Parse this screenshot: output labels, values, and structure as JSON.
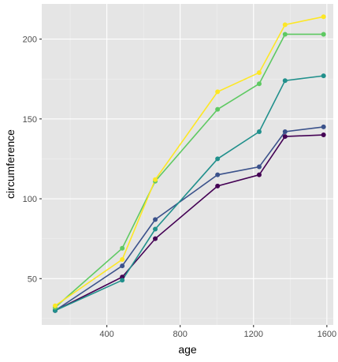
{
  "chart_data": {
    "type": "line",
    "title": "",
    "xlabel": "age",
    "ylabel": "circumference",
    "xlim": [
      45,
      1635
    ],
    "ylim": [
      21,
      222
    ],
    "x_major_ticks": [
      400,
      800,
      1200,
      1600
    ],
    "x_minor_ticks": [
      200,
      600,
      1000,
      1400
    ],
    "y_major_ticks": [
      50,
      100,
      150,
      200
    ],
    "y_minor_ticks": [
      25,
      75,
      125,
      175
    ],
    "x_tick_labels": [
      "400",
      "800",
      "1200",
      "1600"
    ],
    "y_tick_labels": [
      "50",
      "100",
      "150",
      "200"
    ],
    "grid": true,
    "legend": "none",
    "x": [
      118,
      484,
      664,
      1004,
      1231,
      1372,
      1582
    ],
    "series": [
      {
        "color": "#440154",
        "values": [
          30,
          51,
          75,
          108,
          115,
          139,
          140
        ]
      },
      {
        "color": "#3b528b",
        "values": [
          30,
          58,
          87,
          115,
          120,
          142,
          145
        ]
      },
      {
        "color": "#21908c",
        "values": [
          30,
          49,
          81,
          125,
          142,
          174,
          177
        ]
      },
      {
        "color": "#5ec962",
        "values": [
          32,
          69,
          111,
          156,
          172,
          203,
          203
        ]
      },
      {
        "color": "#fde725",
        "values": [
          33,
          62,
          112,
          167,
          179,
          209,
          214
        ]
      }
    ]
  }
}
